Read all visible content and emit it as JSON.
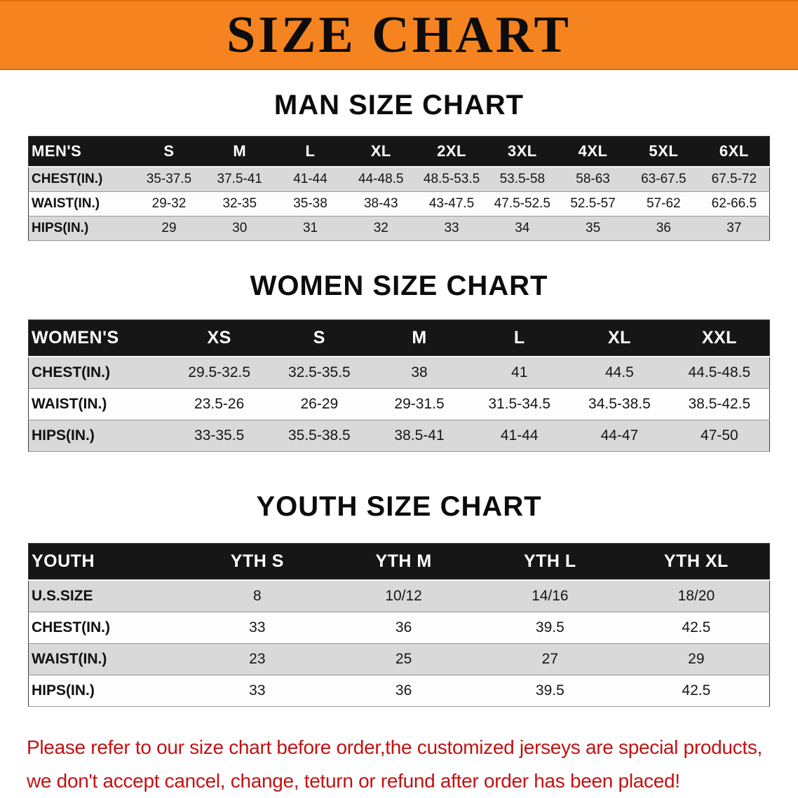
{
  "banner": {
    "title": "SIZE CHART",
    "bg_color": "#F5831F"
  },
  "colors": {
    "banner_orange": "#F5831F",
    "table_header_black": "#161616",
    "row_stripe_gray": "#D9D9D9",
    "disclaimer_red": "#C11212"
  },
  "sections": [
    {
      "id": "mens",
      "heading": "MAN SIZE CHART",
      "table": {
        "header": [
          "MEN'S",
          "S",
          "M",
          "L",
          "XL",
          "2XL",
          "3XL",
          "4XL",
          "5XL",
          "6XL"
        ],
        "rows": [
          [
            "CHEST(IN.)",
            "35-37.5",
            "37.5-41",
            "41-44",
            "44-48.5",
            "48.5-53.5",
            "53.5-58",
            "58-63",
            "63-67.5",
            "67.5-72"
          ],
          [
            "WAIST(IN.)",
            "29-32",
            "32-35",
            "35-38",
            "38-43",
            "43-47.5",
            "47.5-52.5",
            "52.5-57",
            "57-62",
            "62-66.5"
          ],
          [
            "HIPS(IN.)",
            "29",
            "30",
            "31",
            "32",
            "33",
            "34",
            "35",
            "36",
            "37"
          ]
        ]
      }
    },
    {
      "id": "womens",
      "heading": "WOMEN SIZE CHART",
      "table": {
        "header": [
          "WOMEN'S",
          "XS",
          "S",
          "M",
          "L",
          "XL",
          "XXL"
        ],
        "rows": [
          [
            "CHEST(IN.)",
            "29.5-32.5",
            "32.5-35.5",
            "38",
            "41",
            "44.5",
            "44.5-48.5"
          ],
          [
            "WAIST(IN.)",
            "23.5-26",
            "26-29",
            "29-31.5",
            "31.5-34.5",
            "34.5-38.5",
            "38.5-42.5"
          ],
          [
            "HIPS(IN.)",
            "33-35.5",
            "35.5-38.5",
            "38.5-41",
            "41-44",
            "44-47",
            "47-50"
          ]
        ]
      }
    },
    {
      "id": "youth",
      "heading": "YOUTH SIZE CHART",
      "table": {
        "header": [
          "YOUTH",
          "YTH S",
          "YTH M",
          "YTH L",
          "YTH XL"
        ],
        "rows": [
          [
            "U.S.SIZE",
            "8",
            "10/12",
            "14/16",
            "18/20"
          ],
          [
            "CHEST(IN.)",
            "33",
            "36",
            "39.5",
            "42.5"
          ],
          [
            "WAIST(IN.)",
            "23",
            "25",
            "27",
            "29"
          ],
          [
            "HIPS(IN.)",
            "33",
            "36",
            "39.5",
            "42.5"
          ]
        ]
      }
    }
  ],
  "disclaimer": {
    "line1": "Please refer to our size chart before order,the customized jerseys are special products,",
    "line2": "we don't accept cancel, change, teturn or refund after order has been placed!"
  }
}
